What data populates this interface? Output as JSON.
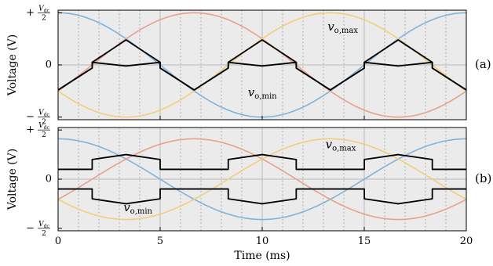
{
  "chart_data": [
    {
      "type": "line",
      "panel": "(a)",
      "xlabel": "",
      "ylabel": "Voltage (V)",
      "xlim": [
        0,
        20
      ],
      "ylim": [
        -1.05,
        1.05
      ],
      "y_unit_label": "Vdc/2",
      "yticks": [
        {
          "sign": "+",
          "num": "V",
          "num_sub": "dc",
          "den": "2"
        },
        {
          "text": "0"
        },
        {
          "sign": "−",
          "num": "V",
          "num_sub": "dc",
          "den": "2"
        }
      ],
      "phase_series": [
        {
          "color": "#7fb3d9",
          "amplitude": 1.0,
          "period_ms": 20,
          "phase_deg": 0
        },
        {
          "color": "#e8a08a",
          "amplitude": 1.0,
          "period_ms": 20,
          "phase_deg": -120
        },
        {
          "color": "#f0cf7a",
          "amplitude": 1.0,
          "period_ms": 20,
          "phase_deg": 120
        }
      ],
      "envelope_max": {
        "color": "#000000",
        "points": [
          [
            0,
            -0.48
          ],
          [
            1.67,
            -0.06
          ],
          [
            1.67,
            0.05
          ],
          [
            3.33,
            0.48
          ],
          [
            5.0,
            0.05
          ],
          [
            5.0,
            -0.06
          ],
          [
            6.67,
            -0.48
          ]
        ],
        "repeat_ms": 6.667
      },
      "envelope_min": {
        "color": "#000000",
        "points": [
          [
            0,
            -0.48
          ],
          [
            1.67,
            -0.06
          ],
          [
            1.67,
            0.05
          ],
          [
            3.33,
            -0.02
          ],
          [
            5.0,
            0.05
          ],
          [
            5.0,
            -0.06
          ],
          [
            6.67,
            -0.48
          ]
        ],
        "repeat_ms": 6.667
      },
      "annotations": [
        {
          "main": "v",
          "sub": "o,max",
          "x": 13.2,
          "y": 0.66
        },
        {
          "main": "v",
          "sub": "o,min",
          "x": 9.3,
          "y": -0.6
        }
      ]
    },
    {
      "type": "line",
      "panel": "(b)",
      "xlabel": "Time (ms)",
      "ylabel": "Voltage (V)",
      "xlim": [
        0,
        20
      ],
      "ylim": [
        -1.05,
        1.05
      ],
      "xticks": [
        "0",
        "5",
        "10",
        "15",
        "20"
      ],
      "yticks": [
        {
          "sign": "+",
          "num": "V",
          "num_sub": "dc",
          "den": "2"
        },
        {
          "text": "0"
        },
        {
          "sign": "−",
          "num": "V",
          "num_sub": "dc",
          "den": "2"
        }
      ],
      "phase_series": [
        {
          "color": "#7fb3d9",
          "amplitude": 0.82,
          "period_ms": 20,
          "phase_deg": 0
        },
        {
          "color": "#e8a08a",
          "amplitude": 0.82,
          "period_ms": 20,
          "phase_deg": -120
        },
        {
          "color": "#f0cf7a",
          "amplitude": 0.82,
          "period_ms": 20,
          "phase_deg": 120
        }
      ],
      "envelope_max": {
        "color": "#000000",
        "points": [
          [
            0,
            0.2
          ],
          [
            1.67,
            0.2
          ],
          [
            1.67,
            0.4
          ],
          [
            3.33,
            0.5
          ],
          [
            5.0,
            0.4
          ],
          [
            5.0,
            0.2
          ],
          [
            6.67,
            0.2
          ]
        ],
        "repeat_ms": 6.667
      },
      "envelope_min": {
        "color": "#000000",
        "points": [
          [
            0,
            -0.2
          ],
          [
            1.67,
            -0.2
          ],
          [
            1.67,
            -0.4
          ],
          [
            3.33,
            -0.5
          ],
          [
            5.0,
            -0.4
          ],
          [
            5.0,
            -0.2
          ],
          [
            6.67,
            -0.2
          ]
        ],
        "repeat_ms": 6.667
      },
      "annotations": [
        {
          "main": "v",
          "sub": "o,max",
          "x": 13.1,
          "y": 0.63
        },
        {
          "main": "v",
          "sub": "o,min",
          "x": 3.2,
          "y": -0.65
        }
      ]
    }
  ]
}
